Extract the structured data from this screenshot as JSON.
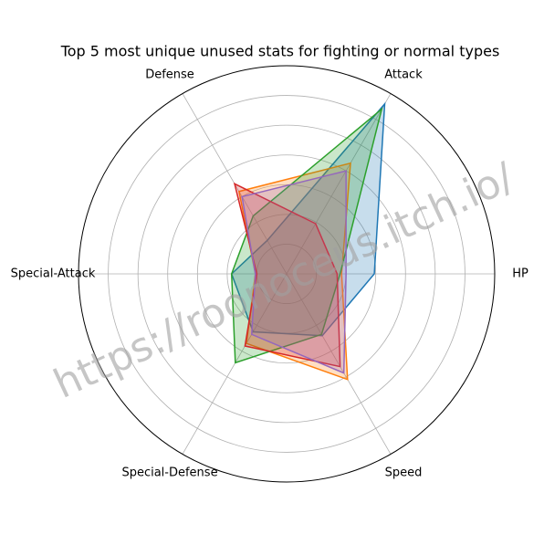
{
  "chart_data": {
    "type": "radar",
    "title": "Top 5 most unique unused stats for fighting or normal types",
    "watermark": "https://roonoceus.itch.io/",
    "categories": [
      "HP",
      "Attack",
      "Defense",
      "Special-Attack",
      "Special-Defense",
      "Speed"
    ],
    "ylim": [
      0,
      140
    ],
    "yticks": [
      20,
      40,
      60,
      80,
      100,
      120
    ],
    "grid": true,
    "series": [
      {
        "color": "#1f77b4",
        "values": [
          59,
          132,
          26,
          37,
          45,
          48
        ]
      },
      {
        "color": "#ff7f0e",
        "values": [
          37,
          86,
          64,
          21,
          54,
          82
        ]
      },
      {
        "color": "#2ca02c",
        "values": [
          36,
          128,
          45,
          37,
          69,
          47
        ]
      },
      {
        "color": "#d62728",
        "values": [
          34,
          39,
          70,
          20,
          56,
          72
        ]
      },
      {
        "color": "#9467bd",
        "values": [
          40,
          80,
          60,
          21,
          47,
          77
        ]
      }
    ]
  }
}
